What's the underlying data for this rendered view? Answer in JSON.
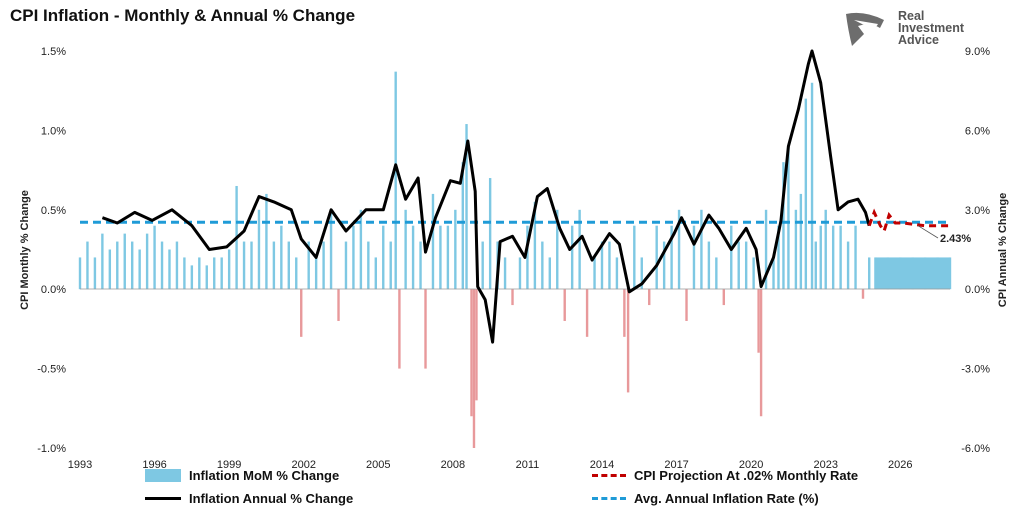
{
  "header": {
    "title": "CPI Inflation - Monthly & Annual % Change"
  },
  "logo": {
    "line1": "Real",
    "line2": "Investment",
    "line3": "Advice"
  },
  "colors": {
    "mom_pos": "#7ec8e3",
    "mom_neg": "#e8999b",
    "annual": "#000000",
    "projection": "#c00000",
    "average": "#1f9bd7"
  },
  "chart_data": {
    "type": "bar+line",
    "x_ticks": [
      "1993",
      "1996",
      "1999",
      "2002",
      "2005",
      "2008",
      "2011",
      "2014",
      "2017",
      "2020",
      "2023",
      "2026"
    ],
    "y_left": {
      "label": "CPI Monthly % Change",
      "ticks": [
        "1.5%",
        "1.0%",
        "0.5%",
        "0.0%",
        "-0.5%",
        "-1.0%"
      ],
      "range": [
        -1.0,
        1.5
      ]
    },
    "y_right": {
      "label": "CPI Annual % Change",
      "ticks": [
        "9.0%",
        "6.0%",
        "3.0%",
        "0.0%",
        "-3.0%",
        "-6.0%"
      ],
      "range": [
        -6.0,
        9.0
      ]
    },
    "annual_series": {
      "name": "Inflation Annual % Change",
      "points": [
        [
          "1993.9",
          2.7
        ],
        [
          "1994.5",
          2.5
        ],
        [
          "1995.2",
          2.9
        ],
        [
          "1995.9",
          2.6
        ],
        [
          "1996.7",
          3.0
        ],
        [
          "1997.5",
          2.4
        ],
        [
          "1998.2",
          1.5
        ],
        [
          "1998.9",
          1.6
        ],
        [
          "1999.6",
          2.2
        ],
        [
          "2000.2",
          3.5
        ],
        [
          "2000.8",
          3.3
        ],
        [
          "2001.5",
          3.0
        ],
        [
          "2001.9",
          1.9
        ],
        [
          "2002.5",
          1.2
        ],
        [
          "2003.1",
          3.0
        ],
        [
          "2003.7",
          2.2
        ],
        [
          "2004.5",
          3.0
        ],
        [
          "2005.2",
          3.0
        ],
        [
          "2005.7",
          4.7
        ],
        [
          "2006.1",
          3.4
        ],
        [
          "2006.6",
          4.2
        ],
        [
          "2006.9",
          1.4
        ],
        [
          "2007.3",
          2.7
        ],
        [
          "2007.9",
          4.1
        ],
        [
          "2008.3",
          4.0
        ],
        [
          "2008.6",
          5.6
        ],
        [
          "2008.9",
          3.7
        ],
        [
          "2009.0",
          0.1
        ],
        [
          "2009.3",
          -0.4
        ],
        [
          "2009.6",
          -2.0
        ],
        [
          "2009.9",
          1.8
        ],
        [
          "2010.4",
          2.0
        ],
        [
          "2010.9",
          1.2
        ],
        [
          "2011.4",
          3.5
        ],
        [
          "2011.8",
          3.8
        ],
        [
          "2012.3",
          2.3
        ],
        [
          "2012.7",
          1.5
        ],
        [
          "2013.2",
          2.0
        ],
        [
          "2013.6",
          1.1
        ],
        [
          "2014.3",
          2.1
        ],
        [
          "2014.7",
          1.7
        ],
        [
          "2015.1",
          -0.1
        ],
        [
          "2015.6",
          0.2
        ],
        [
          "2016.2",
          0.9
        ],
        [
          "2016.9",
          2.1
        ],
        [
          "2017.2",
          2.7
        ],
        [
          "2017.7",
          1.7
        ],
        [
          "2018.3",
          2.8
        ],
        [
          "2018.7",
          2.3
        ],
        [
          "2019.2",
          1.5
        ],
        [
          "2019.8",
          2.3
        ],
        [
          "2020.2",
          1.5
        ],
        [
          "2020.4",
          0.1
        ],
        [
          "2020.9",
          1.2
        ],
        [
          "2021.2",
          2.6
        ],
        [
          "2021.5",
          5.4
        ],
        [
          "2021.9",
          6.8
        ],
        [
          "2022.3",
          8.5
        ],
        [
          "2022.45",
          9.0
        ],
        [
          "2022.8",
          7.8
        ],
        [
          "2023.2",
          5.0
        ],
        [
          "2023.5",
          3.0
        ],
        [
          "2023.9",
          3.3
        ],
        [
          "2024.3",
          3.4
        ],
        [
          "2024.6",
          2.9
        ],
        [
          "2024.75",
          2.4
        ]
      ]
    },
    "projection_series": {
      "name": "CPI Projection At .02% Monthly Rate",
      "points": [
        [
          "2024.75",
          2.4
        ],
        [
          "2024.95",
          2.9
        ],
        [
          "2025.2",
          2.4
        ],
        [
          "2025.35",
          2.2
        ],
        [
          "2025.55",
          2.8
        ],
        [
          "2025.8",
          2.5
        ],
        [
          "2026.1",
          2.5
        ],
        [
          "2027.0",
          2.4
        ],
        [
          "2028.0",
          2.4
        ]
      ]
    },
    "average_series": {
      "name": "Avg. Annual Inflation Rate (%)",
      "value": 2.53
    },
    "mom_series": {
      "name": "Inflation MoM % Change",
      "bars": [
        [
          "1993.0",
          0.2
        ],
        [
          "1993.3",
          0.3
        ],
        [
          "1993.6",
          0.2
        ],
        [
          "1993.9",
          0.35
        ],
        [
          "1994.2",
          0.25
        ],
        [
          "1994.5",
          0.3
        ],
        [
          "1994.8",
          0.35
        ],
        [
          "1995.1",
          0.3
        ],
        [
          "1995.4",
          0.25
        ],
        [
          "1995.7",
          0.35
        ],
        [
          "1996.0",
          0.4
        ],
        [
          "1996.3",
          0.3
        ],
        [
          "1996.6",
          0.25
        ],
        [
          "1996.9",
          0.3
        ],
        [
          "1997.2",
          0.2
        ],
        [
          "1997.5",
          0.15
        ],
        [
          "1997.8",
          0.2
        ],
        [
          "1998.1",
          0.15
        ],
        [
          "1998.4",
          0.2
        ],
        [
          "1998.7",
          0.2
        ],
        [
          "1999.0",
          0.25
        ],
        [
          "1999.3",
          0.65
        ],
        [
          "1999.6",
          0.3
        ],
        [
          "1999.9",
          0.3
        ],
        [
          "2000.2",
          0.5
        ],
        [
          "2000.5",
          0.6
        ],
        [
          "2000.8",
          0.3
        ],
        [
          "2001.1",
          0.4
        ],
        [
          "2001.4",
          0.3
        ],
        [
          "2001.7",
          0.2
        ],
        [
          "2001.9",
          -0.3
        ],
        [
          "2002.2",
          0.3
        ],
        [
          "2002.5",
          0.2
        ],
        [
          "2002.8",
          0.3
        ],
        [
          "2003.1",
          0.5
        ],
        [
          "2003.4",
          -0.2
        ],
        [
          "2003.7",
          0.3
        ],
        [
          "2004.0",
          0.4
        ],
        [
          "2004.3",
          0.5
        ],
        [
          "2004.6",
          0.3
        ],
        [
          "2004.9",
          0.2
        ],
        [
          "2005.2",
          0.4
        ],
        [
          "2005.5",
          0.3
        ],
        [
          "2005.7",
          1.37
        ],
        [
          "2005.85",
          -0.5
        ],
        [
          "2006.1",
          0.5
        ],
        [
          "2006.4",
          0.4
        ],
        [
          "2006.7",
          0.3
        ],
        [
          "2006.9",
          -0.5
        ],
        [
          "2007.2",
          0.6
        ],
        [
          "2007.5",
          0.4
        ],
        [
          "2007.8",
          0.4
        ],
        [
          "2008.1",
          0.5
        ],
        [
          "2008.4",
          0.8
        ],
        [
          "2008.55",
          1.04
        ],
        [
          "2008.75",
          -0.8
        ],
        [
          "2008.85",
          -1.0
        ],
        [
          "2008.95",
          -0.7
        ],
        [
          "2009.2",
          0.3
        ],
        [
          "2009.5",
          0.7
        ],
        [
          "2009.8",
          0.3
        ],
        [
          "2010.1",
          0.2
        ],
        [
          "2010.4",
          -0.1
        ],
        [
          "2010.7",
          0.2
        ],
        [
          "2011.0",
          0.4
        ],
        [
          "2011.3",
          0.55
        ],
        [
          "2011.6",
          0.3
        ],
        [
          "2011.9",
          0.2
        ],
        [
          "2012.2",
          0.5
        ],
        [
          "2012.5",
          -0.2
        ],
        [
          "2012.8",
          0.4
        ],
        [
          "2013.1",
          0.5
        ],
        [
          "2013.4",
          -0.3
        ],
        [
          "2013.7",
          0.2
        ],
        [
          "2014.0",
          0.3
        ],
        [
          "2014.3",
          0.3
        ],
        [
          "2014.6",
          0.2
        ],
        [
          "2014.9",
          -0.3
        ],
        [
          "2015.05",
          -0.65
        ],
        [
          "2015.3",
          0.4
        ],
        [
          "2015.6",
          0.2
        ],
        [
          "2015.9",
          -0.1
        ],
        [
          "2016.2",
          0.4
        ],
        [
          "2016.5",
          0.3
        ],
        [
          "2016.8",
          0.4
        ],
        [
          "2017.1",
          0.5
        ],
        [
          "2017.4",
          -0.2
        ],
        [
          "2017.7",
          0.4
        ],
        [
          "2018.0",
          0.5
        ],
        [
          "2018.3",
          0.3
        ],
        [
          "2018.6",
          0.2
        ],
        [
          "2018.9",
          -0.1
        ],
        [
          "2019.2",
          0.4
        ],
        [
          "2019.5",
          0.3
        ],
        [
          "2019.8",
          0.3
        ],
        [
          "2020.1",
          0.2
        ],
        [
          "2020.3",
          -0.4
        ],
        [
          "2020.4",
          -0.8
        ],
        [
          "2020.6",
          0.5
        ],
        [
          "2020.9",
          0.2
        ],
        [
          "2021.1",
          0.4
        ],
        [
          "2021.3",
          0.8
        ],
        [
          "2021.5",
          0.9
        ],
        [
          "2021.8",
          0.5
        ],
        [
          "2022.0",
          0.6
        ],
        [
          "2022.2",
          1.2
        ],
        [
          "2022.45",
          1.3
        ],
        [
          "2022.6",
          0.3
        ],
        [
          "2022.8",
          0.4
        ],
        [
          "2023.0",
          0.5
        ],
        [
          "2023.3",
          0.4
        ],
        [
          "2023.6",
          0.4
        ],
        [
          "2023.9",
          0.3
        ],
        [
          "2024.2",
          0.4
        ],
        [
          "2024.5",
          -0.06
        ],
        [
          "2024.75",
          0.2
        ],
        [
          "2025.0",
          0.2
        ],
        [
          "2025.5",
          0.2
        ],
        [
          "2026.0",
          0.2
        ],
        [
          "2026.5",
          0.2
        ],
        [
          "2027.0",
          0.2
        ],
        [
          "2027.5",
          0.2
        ],
        [
          "2028.0",
          0.2
        ]
      ]
    },
    "annotation": "2.43%"
  },
  "legend": {
    "mom": "Inflation MoM % Change",
    "annual": "Inflation Annual % Change",
    "projection": "CPI Projection At .02% Monthly Rate",
    "average": "Avg. Annual Inflation Rate (%)"
  }
}
